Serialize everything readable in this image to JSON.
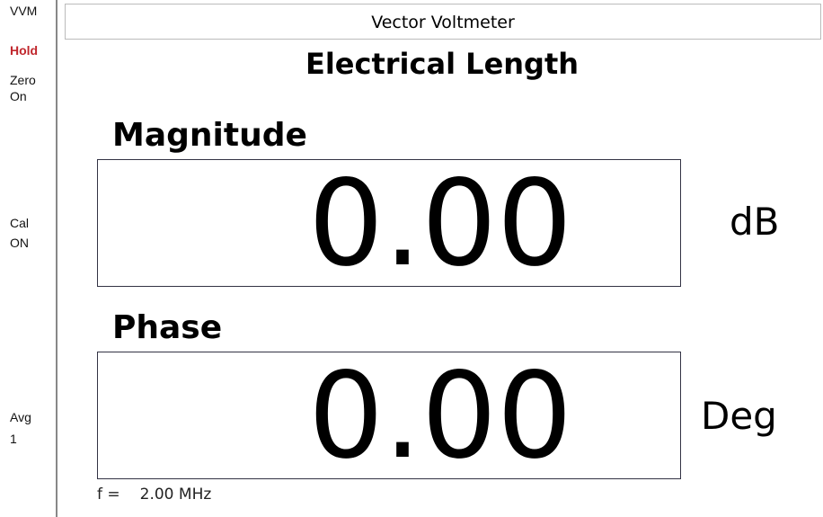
{
  "sidebar": {
    "mode": "VVM",
    "hold": "Hold",
    "zero": [
      "Zero",
      "On"
    ],
    "cal": [
      "Cal",
      "ON"
    ],
    "avg": [
      "Avg",
      "1"
    ]
  },
  "header": {
    "title": "Vector Voltmeter"
  },
  "subtitle": "Electrical Length",
  "readings": [
    {
      "label": "Magnitude",
      "value": "0.00",
      "unit": "dB"
    },
    {
      "label": "Phase",
      "value": "0.00",
      "unit": "Deg"
    }
  ],
  "footer": {
    "freq_label": "f =",
    "freq_value": "2.00 MHz"
  }
}
